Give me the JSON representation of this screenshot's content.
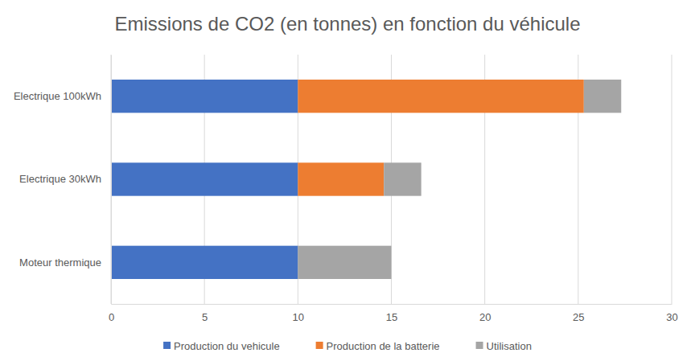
{
  "chart_data": {
    "type": "bar",
    "title": "Emissions de CO2 (en tonnes) en fonction du véhicule",
    "orientation": "horizontal",
    "stacked": true,
    "grid": true,
    "legend": "bottom",
    "categories": [
      "Electrique 100kWh",
      "Electrique 30kWh",
      "Moteur thermique"
    ],
    "series": [
      {
        "name": "Production du vehicule",
        "color": "#4472c4",
        "values": [
          10,
          10,
          10
        ]
      },
      {
        "name": "Production de la batterie",
        "color": "#ed7d31",
        "values": [
          15.3,
          4.6,
          null
        ]
      },
      {
        "name": "Utilisation",
        "color": "#a5a5a5",
        "values": [
          2,
          2,
          5
        ]
      }
    ],
    "xlim": [
      0,
      30
    ],
    "xticks": [
      0,
      5,
      10,
      15,
      20,
      25,
      30
    ]
  }
}
